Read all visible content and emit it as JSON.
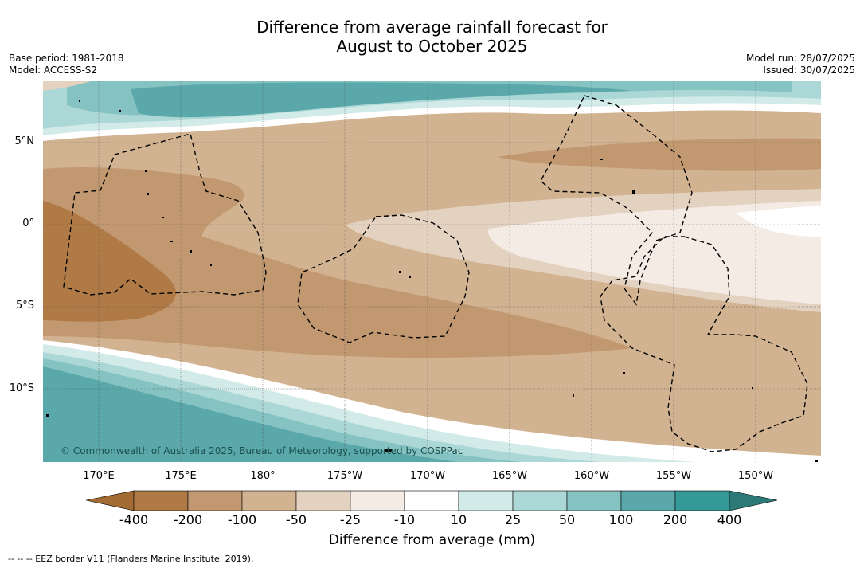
{
  "header": {
    "title_line1": "Difference from average rainfall forecast for",
    "title_line2": "August to October 2025",
    "base_period": "Base period: 1981-2018",
    "model": "Model: ACCESS-S2",
    "model_run": "Model run: 28/07/2025",
    "issued": "Issued: 30/07/2025"
  },
  "map": {
    "lat_labels": [
      "5°N",
      "0°",
      "5°S",
      "10°S"
    ],
    "lon_labels": [
      "170°E",
      "175°E",
      "180°",
      "175°W",
      "170°W",
      "165°W",
      "160°W",
      "155°W",
      "150°W"
    ],
    "copyright": "© Commonwealth of Australia 2025, Bureau of Meteorology, supported by COSPPac",
    "colors": {
      "lt_-400": "#a26b33",
      "-400_-200": "#af7a45",
      "-200_-100": "#c29871",
      "-100_-50": "#d2b391",
      "-50_-25": "#e4d2c1",
      "-25_-10": "#f4ebe5",
      "-10_10": "#ffffff",
      "10_25": "#d3ebe8",
      "25_50": "#abd8d6",
      "50_100": "#84c3c1",
      "100_200": "#5aa8aa",
      "200_400": "#359a97",
      "gt_400": "#2b7a77"
    }
  },
  "colorbar": {
    "ticks": [
      "-400",
      "-200",
      "-100",
      "-50",
      "-25",
      "-10",
      "10",
      "25",
      "50",
      "100",
      "200",
      "400"
    ],
    "title": "Difference from average (mm)"
  },
  "legend_note": "-- -- -- EEZ border V11 (Flanders Marine Institute, 2019)."
}
